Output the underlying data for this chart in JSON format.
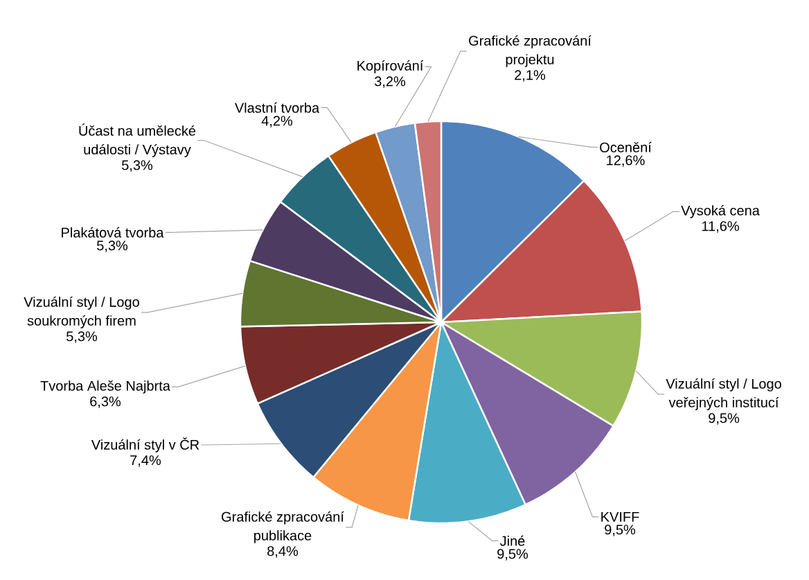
{
  "chart_data": {
    "type": "pie",
    "categories": [
      "Ocenění",
      "Vysoká cena",
      "Vizuální styl / Logo veřejných institucí",
      "KVIFF",
      "Jiné",
      "Grafické zpracování publikace",
      "Vizuální styl v ČR",
      "Tvorba Aleše Najbrta",
      "Vizuální styl / Logo soukromých firem",
      "Plakátová tvorba",
      "Účast na umělecké události / Výstavy",
      "Vlastní tvorba",
      "Kopírování",
      "Grafické zpracování projektu"
    ],
    "values": [
      12.6,
      11.6,
      9.5,
      9.5,
      9.5,
      8.4,
      7.4,
      6.3,
      5.3,
      5.3,
      5.3,
      4.2,
      3.2,
      2.1
    ],
    "value_labels": [
      "12,6%",
      "11,6%",
      "9,5%",
      "9,5%",
      "9,5%",
      "8,4%",
      "7,4%",
      "6,3%",
      "5,3%",
      "5,3%",
      "5,3%",
      "4,2%",
      "3,2%",
      "2,1%"
    ],
    "colors": [
      "#4f81bd",
      "#c0504d",
      "#9bbb59",
      "#8064a2",
      "#4bacc6",
      "#f79646",
      "#2c4d75",
      "#772c2a",
      "#5f7530",
      "#4d3b62",
      "#276a7c",
      "#b65708",
      "#729aca",
      "#cd7371"
    ]
  }
}
